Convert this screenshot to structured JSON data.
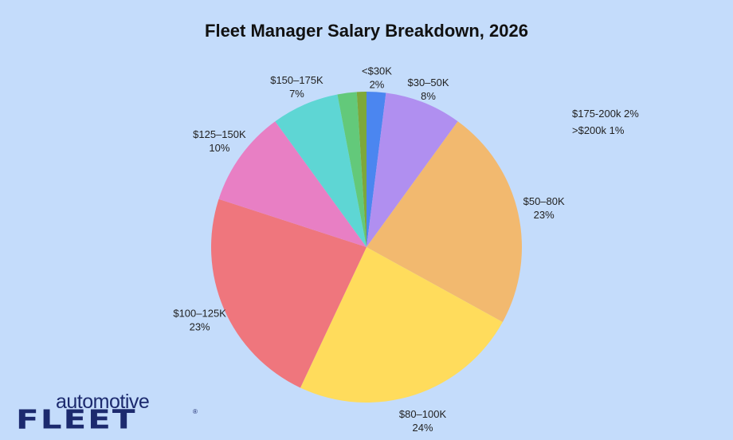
{
  "chart_data": {
    "type": "pie",
    "title": "Fleet Manager Salary Breakdown, 2026",
    "slices": [
      {
        "name": "<$30K",
        "value": 2,
        "label_pct": "2%",
        "color": "#4b86f0"
      },
      {
        "name": "$30–50K",
        "value": 8,
        "label_pct": "8%",
        "color": "#b08ff0"
      },
      {
        "name": "$50–80K",
        "value": 23,
        "label_pct": "23%",
        "color": "#f2b96f"
      },
      {
        "name": "$80–100K",
        "value": 24,
        "label_pct": "24%",
        "color": "#ffdc5c"
      },
      {
        "name": "$100–125K",
        "value": 23,
        "label_pct": "23%",
        "color": "#ef767d"
      },
      {
        "name": "$125–150K",
        "value": 10,
        "label_pct": "10%",
        "color": "#e87fc4"
      },
      {
        "name": "$150–175K",
        "value": 7,
        "label_pct": "7%",
        "color": "#5ed6d4"
      },
      {
        "name": "$175-200k",
        "value": 2,
        "label_pct": "2%",
        "color": "#63c97a"
      },
      {
        "name": ">$200k",
        "value": 1,
        "label_pct": "1%",
        "color": "#7da83a"
      }
    ],
    "side_notes": [
      "$175-200k 2%",
      ">$200k 1%"
    ]
  },
  "logo": {
    "top": "automotive",
    "main": "FLEET",
    "reg": "®"
  }
}
